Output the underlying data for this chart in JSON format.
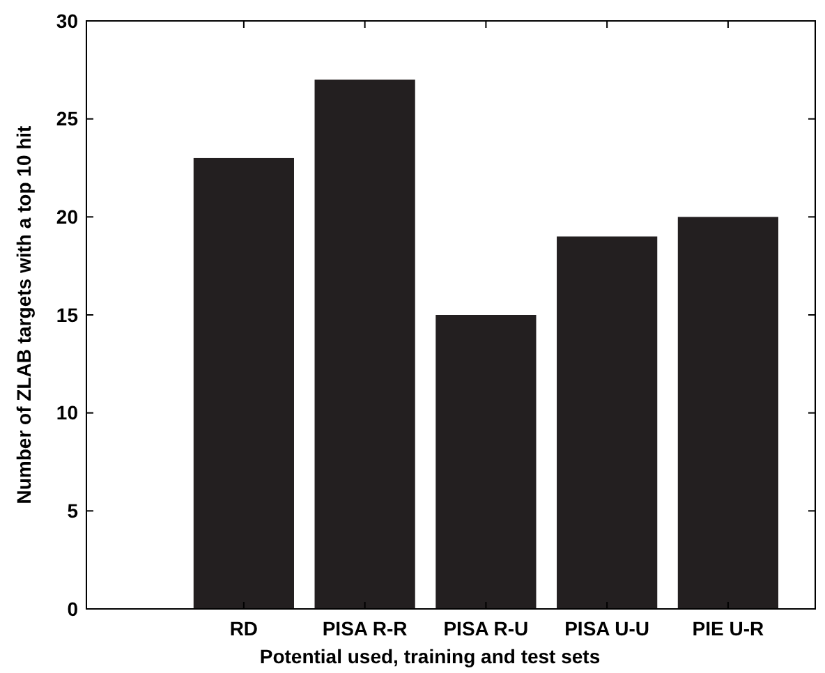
{
  "chart_data": {
    "type": "bar",
    "xlabel": "Potential used, training and test sets",
    "ylabel": "Number of ZLAB targets with a top 10 hit",
    "categories": [
      "RD",
      "PISA R-R",
      "PISA R-U",
      "PISA U-U",
      "PIE U-R"
    ],
    "values": [
      23,
      27,
      15,
      19,
      20
    ],
    "color": "#231f20",
    "ylim": [
      0,
      30
    ],
    "yticks": [
      0,
      5,
      10,
      15,
      20,
      25,
      30
    ],
    "grid": false
  }
}
